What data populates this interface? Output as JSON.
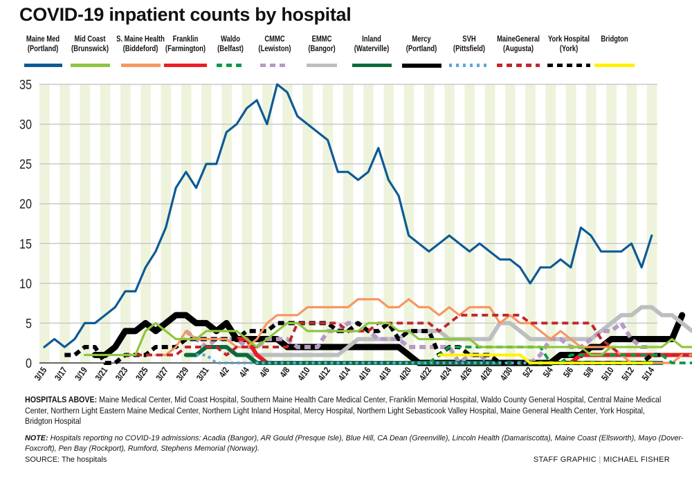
{
  "title": "COVID-19 inpatient counts by hospital",
  "footer": {
    "hospitals_label": "HOSPITALS ABOVE:",
    "hospitals_text": " Maine Medical Center, Mid Coast Hospital, Southern Maine Health Care Medical Center, Franklin Memorial Hospital, Waldo County General Hospital, Central Maine Medical Center, Northern Light Eastern Maine Medical Center, Northern Light Inland Hospital, Mercy Hospital, Northern Light Sebasticook Valley Hospital, Maine General Health Center, York Hospital, Bridgton Hospital",
    "note_label": "NOTE:",
    "note_text": " Hospitals reporting no COVID-19 admissions: Acadia (Bangor), AR Gould (Presque Isle), Blue Hill, CA Dean (Greenville), Lincoln Health (Damariscotta), Maine Coast (Ellsworth), Mayo (Dover-Foxcroft), Pen Bay (Rockport), Rumford, Stephens Memorial (Norway).",
    "source": "SOURCE: The hospitals",
    "credit_left": "STAFF GRAPHIC",
    "credit_sep": "|",
    "credit_right": "MICHAEL FISHER"
  },
  "chart_data": {
    "type": "line",
    "title": "COVID-19 inpatient counts by hospital",
    "xlabel": "",
    "ylabel": "",
    "ylim": [
      0,
      35
    ],
    "yticks": [
      0,
      5,
      10,
      15,
      20,
      25,
      30,
      35
    ],
    "grid": true,
    "legend_position": "top",
    "x_start": "3/15",
    "x_end": "5/14",
    "xtick_labels": [
      "3/15",
      "3/17",
      "3/19",
      "3/21",
      "3/23",
      "3/25",
      "3/27",
      "3/29",
      "3/31",
      "4/2",
      "4/4",
      "4/6",
      "4/8",
      "4/10",
      "4/12",
      "4/14",
      "4/16",
      "4/18",
      "4/20",
      "4/22",
      "4/24",
      "4/26",
      "4/28",
      "4/30",
      "5/2",
      "5/4",
      "5/6",
      "5/8",
      "5/10",
      "5/12",
      "5/14"
    ],
    "series": [
      {
        "name": "Maine Med",
        "sub": "(Portland)",
        "color": "#0b5a96",
        "style": "solid",
        "width": "thin",
        "start": 0,
        "values": [
          2,
          3,
          2,
          3,
          5,
          5,
          6,
          7,
          9,
          9,
          12,
          14,
          17,
          22,
          24,
          22,
          25,
          25,
          29,
          30,
          32,
          33,
          30,
          35,
          34,
          31,
          30,
          29,
          28,
          24,
          24,
          23,
          24,
          27,
          23,
          21,
          16,
          15,
          14,
          15,
          16,
          15,
          14,
          15,
          14,
          13,
          13,
          12,
          10,
          12,
          12,
          13,
          12,
          17,
          16,
          14,
          14,
          14,
          15,
          12,
          16
        ]
      },
      {
        "name": "Mid Coast",
        "sub": "(Brunswick)",
        "color": "#8dc63f",
        "style": "solid",
        "width": "thin",
        "start": 4,
        "values": [
          1,
          1,
          1,
          1,
          1,
          1,
          4,
          5,
          4,
          3,
          3,
          3,
          4,
          4,
          4,
          4,
          3,
          2,
          3,
          4,
          5,
          5,
          4,
          4,
          4,
          4,
          4,
          4,
          5,
          5,
          5,
          4,
          4,
          3,
          3,
          3,
          3,
          3,
          3,
          2,
          2,
          2,
          2,
          2,
          2,
          2,
          2,
          2,
          2,
          2,
          1,
          1,
          2,
          2,
          2,
          2,
          2,
          2,
          3,
          2,
          2
        ]
      },
      {
        "name": "S. Maine Health",
        "sub": "(Biddeford)",
        "color": "#f7965f",
        "style": "solid",
        "width": "thin",
        "start": 11,
        "values": [
          1,
          1,
          2,
          4,
          3,
          3,
          3,
          3,
          2,
          2,
          3,
          5,
          6,
          6,
          6,
          7,
          7,
          7,
          7,
          7,
          8,
          8,
          8,
          7,
          7,
          8,
          7,
          7,
          6,
          7,
          6,
          7,
          7,
          7,
          5,
          6,
          5,
          5,
          4,
          3,
          4,
          3,
          2,
          2,
          2,
          2,
          1,
          0,
          0,
          0,
          0,
          0,
          1,
          1
        ]
      },
      {
        "name": "Franklin",
        "sub": "(Farmington)",
        "color": "#ed1c24",
        "style": "solid",
        "width": "thick",
        "start": 19,
        "values": [
          3,
          3,
          1,
          0,
          0,
          0,
          0,
          0,
          0,
          0,
          0,
          0,
          0,
          0,
          0,
          0,
          0,
          0,
          0,
          0,
          0,
          0,
          0,
          0,
          0,
          0,
          0,
          0,
          0,
          0,
          0,
          0,
          0,
          0,
          1,
          1,
          1,
          1,
          1,
          1,
          1,
          1,
          1,
          1,
          1,
          1,
          0,
          0,
          0,
          0,
          0,
          0
        ]
      },
      {
        "name": "Waldo",
        "sub": "(Belfast)",
        "color": "#0a9b4a",
        "style": "dashed",
        "width": "medium",
        "start": 37,
        "values": [
          0,
          0,
          1,
          2,
          2,
          2,
          2,
          2,
          2,
          2,
          2,
          2,
          2,
          0,
          0,
          1,
          1,
          1,
          1,
          1,
          1,
          1,
          1,
          1,
          1,
          0,
          0,
          0,
          0,
          0,
          0,
          0,
          0
        ]
      },
      {
        "name": "CMMC",
        "sub": "(Lewiston)",
        "color": "#b79ac8",
        "style": "dashed",
        "width": "thick",
        "start": 14,
        "values": [
          4,
          3,
          2,
          3,
          3,
          3,
          2,
          2,
          3,
          3,
          3,
          2,
          2,
          2,
          4,
          4,
          5,
          5,
          4,
          3,
          3,
          3,
          2,
          2,
          2,
          2,
          2,
          0,
          1,
          1,
          0,
          0,
          0,
          0,
          0,
          1,
          3,
          3,
          2,
          2,
          3,
          4,
          4,
          5,
          3,
          2,
          2
        ]
      },
      {
        "name": "EMMC",
        "sub": "(Bangor)",
        "color": "#bcbec0",
        "style": "solid",
        "width": "thick",
        "start": 20,
        "values": [
          1,
          1,
          1,
          1,
          1,
          1,
          1,
          1,
          1,
          1,
          2,
          3,
          3,
          3,
          3,
          3,
          4,
          4,
          4,
          4,
          3,
          3,
          3,
          3,
          3,
          5,
          5,
          4,
          3,
          3,
          3,
          3,
          3,
          3,
          3,
          4,
          5,
          6,
          6,
          7,
          7,
          6,
          6,
          5,
          4,
          4,
          2,
          2,
          2
        ]
      },
      {
        "name": "Inland",
        "sub": "(Waterville)",
        "color": "#0b6b3a",
        "style": "solid",
        "width": "thick",
        "start": 14,
        "values": [
          1,
          1,
          2,
          2,
          2,
          1,
          1,
          0,
          0,
          0,
          0,
          0,
          0,
          0,
          0,
          0,
          0,
          0,
          0,
          0,
          0,
          0,
          0,
          0,
          0,
          0,
          0,
          0,
          0,
          0,
          0,
          0,
          0,
          0,
          0,
          0,
          0,
          0,
          0,
          0,
          0,
          0,
          0,
          0,
          0,
          0,
          0,
          0
        ]
      },
      {
        "name": "Mercy",
        "sub": "(Portland)",
        "color": "#000000",
        "style": "solid",
        "width": "extra",
        "start": 5,
        "values": [
          1,
          1,
          2,
          4,
          4,
          5,
          4,
          5,
          6,
          6,
          5,
          5,
          4,
          5,
          3,
          3,
          3,
          3,
          3,
          2,
          2,
          2,
          2,
          2,
          2,
          2,
          2,
          2,
          2,
          2,
          2,
          1,
          0,
          0,
          0,
          0,
          0,
          0,
          0,
          0,
          0,
          0,
          0,
          0,
          0,
          0,
          1,
          1,
          1,
          2,
          2,
          3,
          3,
          3,
          3,
          3,
          3,
          3,
          6
        ]
      },
      {
        "name": "SVH",
        "sub": "(Pittsfield)",
        "color": "#58a8de",
        "style": "dotted",
        "width": "medium",
        "start": 15,
        "values": [
          1,
          1,
          0,
          0,
          0,
          0,
          0,
          0,
          0,
          0,
          0,
          0,
          0,
          0,
          0,
          0,
          0,
          0,
          0,
          0,
          0,
          0,
          0,
          0,
          0,
          0,
          0,
          0,
          0,
          0,
          0,
          0,
          0,
          0,
          0,
          0,
          0
        ]
      },
      {
        "name": "MaineGeneral",
        "sub": "(Augusta)",
        "color": "#c1272d",
        "style": "dashed",
        "width": "medium",
        "start": 8,
        "values": [
          1,
          1,
          1,
          1,
          1,
          1,
          2,
          2,
          2,
          2,
          1,
          2,
          2,
          2,
          2,
          2,
          2,
          5,
          5,
          5,
          5,
          5,
          4,
          4,
          4,
          5,
          5,
          5,
          5,
          5,
          5,
          4,
          5,
          6,
          6,
          6,
          6,
          6,
          6,
          6,
          5,
          5,
          5,
          5,
          5,
          5,
          5,
          3,
          2,
          1,
          1,
          1,
          1,
          1,
          1,
          1,
          1,
          1,
          1,
          0,
          0,
          0
        ]
      },
      {
        "name": "York Hospital",
        "sub": "(York)",
        "color": "#000000",
        "style": "dashed",
        "width": "thick",
        "start": 2,
        "values": [
          1,
          1,
          2,
          2,
          0,
          0,
          1,
          1,
          1,
          2,
          2,
          2,
          3,
          3,
          3,
          3,
          3,
          3,
          4,
          4,
          4,
          5,
          5,
          5,
          5,
          5,
          5,
          4,
          4,
          5,
          4,
          4,
          5,
          3,
          4,
          4,
          4,
          1,
          2,
          2,
          1,
          1,
          1,
          0,
          0,
          0,
          0,
          0,
          0,
          0,
          0,
          0,
          0,
          0,
          0,
          0,
          0,
          0,
          1,
          1
        ]
      },
      {
        "name": "Bridgton",
        "sub": "",
        "color": "#fff200",
        "style": "solid",
        "width": "medium",
        "start": 39,
        "values": [
          1,
          1,
          1,
          1,
          1,
          1,
          1,
          1,
          1,
          0,
          0,
          0,
          0,
          0,
          0,
          0,
          0,
          0,
          0,
          0,
          0,
          0
        ]
      }
    ]
  }
}
